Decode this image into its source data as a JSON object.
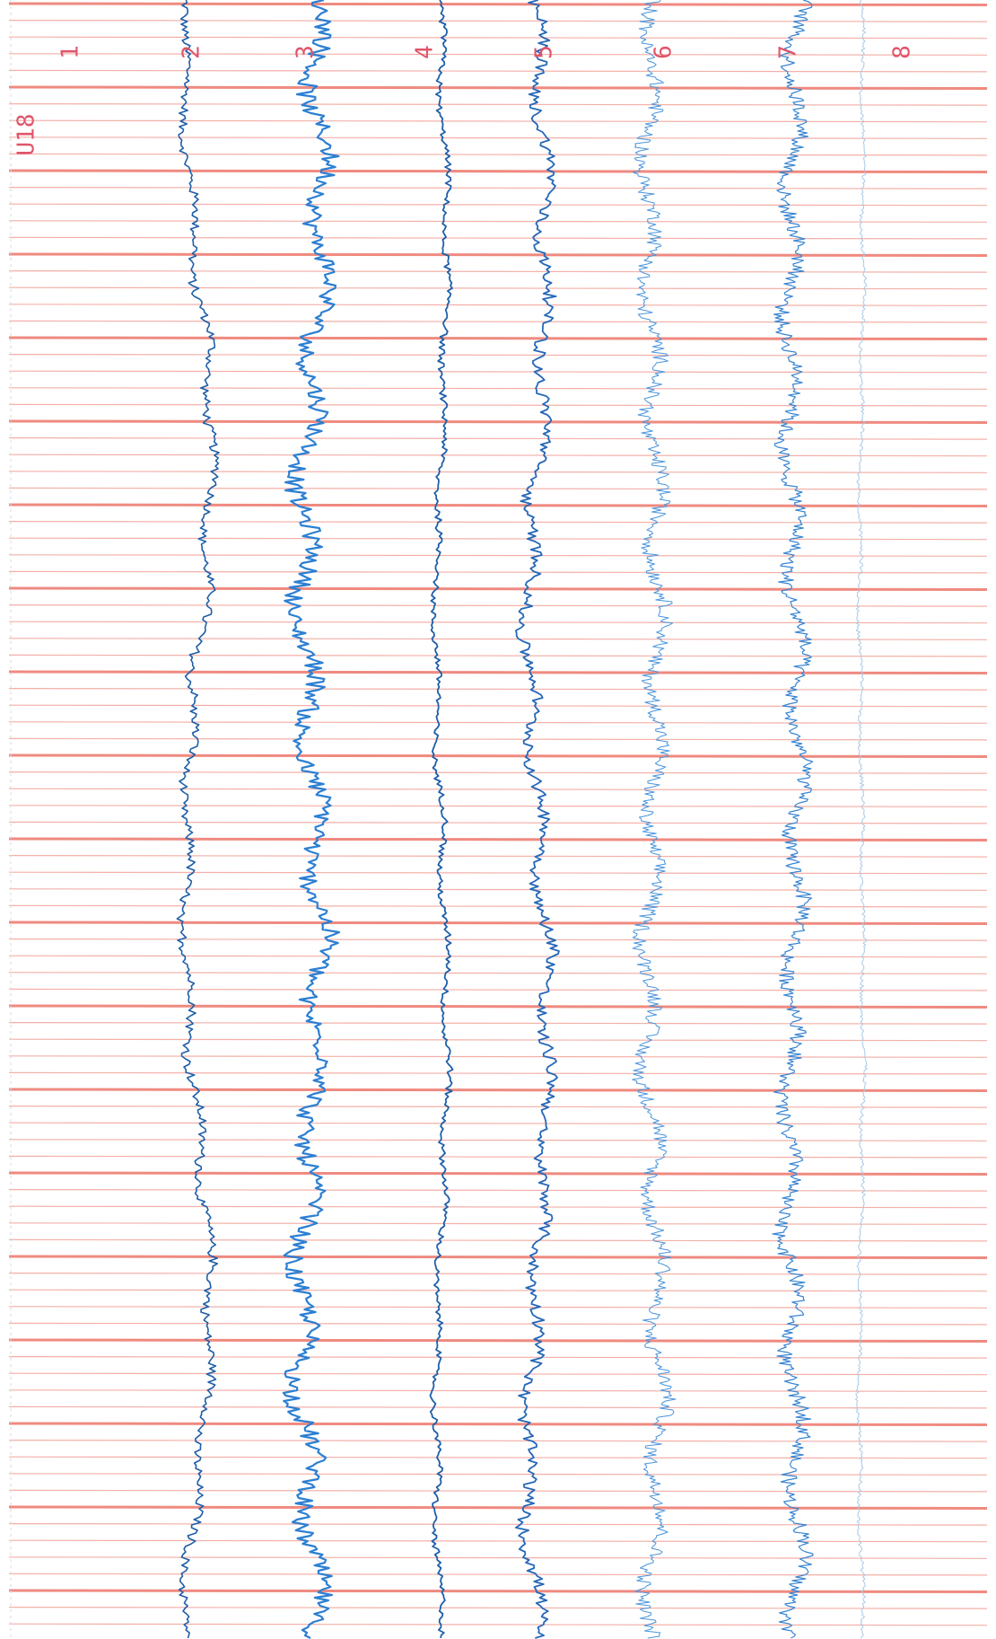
{
  "page": {
    "id_label": "U18",
    "channels": [
      "1",
      "2",
      "3",
      "4",
      "5",
      "6",
      "7",
      "8"
    ]
  }
}
